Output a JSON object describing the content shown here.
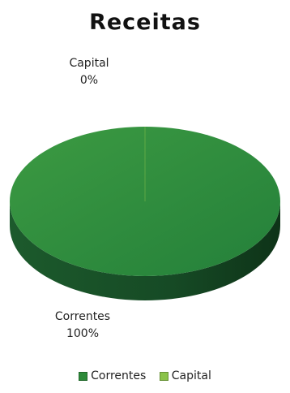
{
  "chart_data": {
    "type": "pie",
    "title": "Receitas",
    "categories": [
      "Correntes",
      "Capital"
    ],
    "values": [
      100,
      0
    ],
    "percent_labels": [
      "100%",
      "0%"
    ],
    "colors": {
      "Correntes": "#2e8b3a",
      "Capital": "#8bc34a"
    },
    "legend_position": "bottom",
    "style": "3d"
  }
}
